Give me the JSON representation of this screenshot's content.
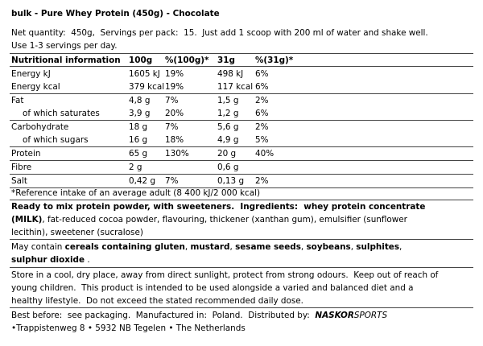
{
  "header": {
    "title": "bulk - Pure Whey Protein (450g) - Chocolate"
  },
  "intro": {
    "lines": [
      "Net quantity:  450g,  Servings per pack:  15.  Just add 1 scoop with 200 ml of water and shake well.",
      "Use 1-3 servings per day."
    ]
  },
  "table": {
    "columns": [
      "Nutritional information",
      "100g",
      "%(100g)*",
      "31g",
      "%(31g)*"
    ],
    "rows": [
      [
        "Energy kJ",
        "1605 kJ",
        "19%",
        "498 kJ",
        "6%"
      ],
      [
        "Energy kcal",
        "379 kcal",
        "19%",
        "117 kcal",
        "6%"
      ],
      [
        "Fat",
        "4,8 g",
        "7%",
        "1,5 g",
        "2%"
      ],
      [
        "of which saturates",
        "3,9 g",
        "20%",
        "1,2 g",
        "6%"
      ],
      [
        "Carbohydrate",
        "18 g",
        "7%",
        "5,6 g",
        "2%"
      ],
      [
        "of which sugars",
        "16 g",
        "18%",
        "4,9 g",
        "5%"
      ],
      [
        "Protein",
        "65 g",
        "130%",
        "20 g",
        "40%"
      ],
      [
        "Fibre",
        "2 g",
        "",
        "0,6 g",
        ""
      ],
      [
        "Salt",
        "0,42 g",
        "7%",
        "0,13 g",
        "2%"
      ]
    ],
    "footnote": "*Reference intake of an average adult (8 400 kJ/2 000 kcal)"
  },
  "ingredients": {
    "lines": [
      [
        "Ready to mix protein powder, with sweeteners.  Ingredients:  whey protein concentrate"
      ],
      [
        "(MILK)",
        ", fat-reduced cocoa powder, flavouring, thickener (xanthan gum), emulsifier (sunflower"
      ],
      [
        "lecithin), sweetener (sucralose)"
      ]
    ]
  },
  "allergens": {
    "lines": [
      [
        "May contain ",
        "cereals containing gluten",
        ", ",
        "mustard",
        ", ",
        "sesame seeds",
        ", ",
        "soybeans",
        ", ",
        "sulphites",
        ","
      ],
      [
        "sulphur dioxide",
        " ."
      ]
    ]
  },
  "storage": {
    "lines": [
      "Store in a cool, dry place, away from direct sunlight, protect from strong odours.  Keep out of reach of",
      "young children.  This product is intended to be used alongside a varied and balanced diet and a",
      "healthy lifestyle.  Do not exceed the stated recommended daily dose."
    ]
  },
  "distributor": {
    "lines": [
      [
        "Best before:  see packaging.  Manufactured in:  Poland.  Distributed by:  ",
        "NASKOR",
        "SPORTS"
      ],
      [
        "•Trappistenweg 8 • 5932 NB Tegelen • The Netherlands"
      ]
    ]
  }
}
